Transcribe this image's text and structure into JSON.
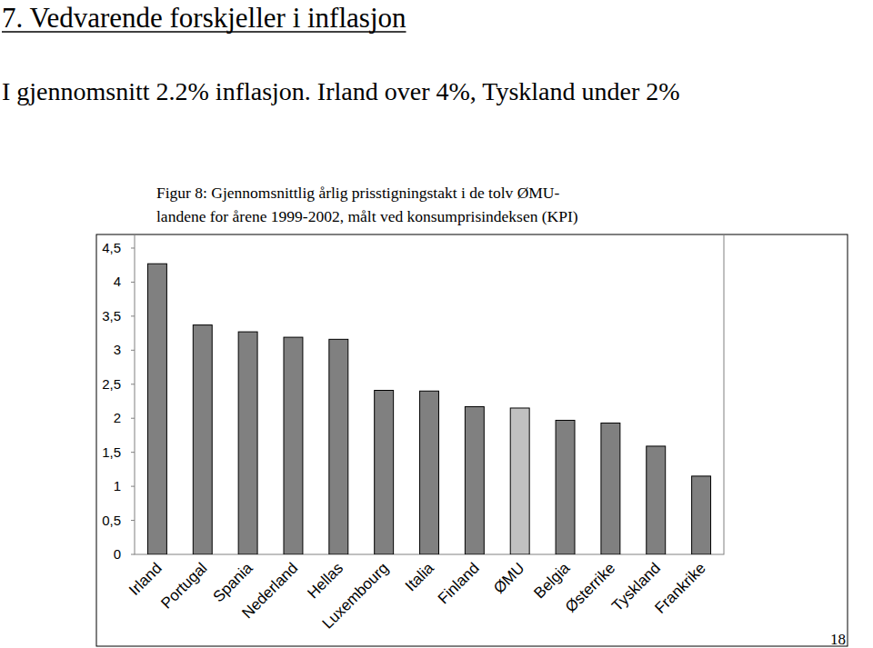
{
  "chart_data": {
    "type": "bar",
    "title": "7. Vedvarende forskjeller i inflasjon",
    "subtitle": "I gjennomsnitt 2.2% inflasjon. Irland over 4%, Tyskland under 2%",
    "annotations": [
      "Figur 8: Gjennomsnittlig årlig prisstigningstakt i de tolv ØMU-",
      "landene for årene 1999-2002, målt ved konsumprisindeksen (KPI)",
      "18"
    ],
    "categories": [
      "Irland",
      "Portugal",
      "Spania",
      "Nederland",
      "Hellas",
      "Luxembourg",
      "Italia",
      "Finland",
      "ØMU",
      "Belgia",
      "Østerrike",
      "Tyskland",
      "Frankrike"
    ],
    "values": [
      4.27,
      3.37,
      3.27,
      3.19,
      3.16,
      2.41,
      2.4,
      2.17,
      2.15,
      1.97,
      1.93,
      1.59,
      1.15
    ],
    "colors": [
      "#808080",
      "#808080",
      "#808080",
      "#808080",
      "#808080",
      "#808080",
      "#808080",
      "#808080",
      "#c0c0c0",
      "#808080",
      "#808080",
      "#808080",
      "#808080"
    ],
    "ylim": [
      0,
      4.7
    ],
    "yticks": [
      0,
      {
        "value": 0.5,
        "label": "0,5"
      },
      1,
      {
        "value": 1.5,
        "label": "1,5"
      },
      2,
      {
        "value": 2.5,
        "label": "2,5"
      },
      3,
      {
        "value": 3.5,
        "label": "3,5"
      },
      4,
      {
        "value": 4.5,
        "label": "4,5"
      }
    ],
    "grid": false
  }
}
